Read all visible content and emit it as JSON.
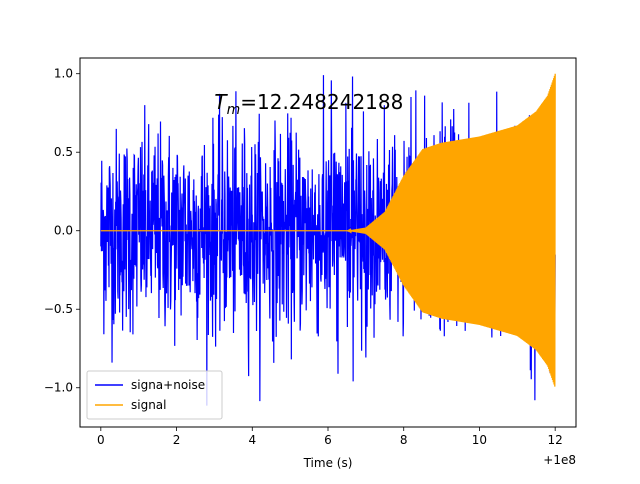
{
  "chart_data": {
    "type": "line",
    "title": "",
    "annotation": {
      "symbol": "T",
      "subscript": "m",
      "equals_value": "=12.248242188"
    },
    "xlabel": "Time (s)",
    "ylabel": "",
    "axis_offset_label": "+1e8",
    "xlim": [
      -0.55,
      12.55
    ],
    "ylim": [
      -1.25,
      1.1
    ],
    "x_ticks": [
      {
        "value": 0,
        "label": "0"
      },
      {
        "value": 2,
        "label": "2"
      },
      {
        "value": 4,
        "label": "4"
      },
      {
        "value": 6,
        "label": "6"
      },
      {
        "value": 8,
        "label": "8"
      },
      {
        "value": 10,
        "label": "10"
      },
      {
        "value": 12,
        "label": "12"
      }
    ],
    "y_ticks": [
      {
        "value": 1.0,
        "label": "1.0"
      },
      {
        "value": 0.5,
        "label": "0.5"
      },
      {
        "value": 0.0,
        "label": "0.0"
      },
      {
        "value": -0.5,
        "label": "−0.5"
      },
      {
        "value": -1.0,
        "label": "−1.0"
      }
    ],
    "grid": false,
    "legend_position": "lower-left",
    "series": [
      {
        "name": "signa+noise",
        "color": "#0000ff",
        "x_range": [
          0,
          12.0
        ],
        "y_envelope_approx": [
          -1.15,
          1.0
        ]
      },
      {
        "name": "signal",
        "color": "#ffa500",
        "envelope": {
          "x": [
            0,
            6.5,
            7.0,
            7.5,
            8.0,
            8.5,
            9.0,
            10.0,
            11.0,
            11.5,
            11.8,
            12.0
          ],
          "amplitude": [
            0.0,
            0.0,
            0.02,
            0.12,
            0.35,
            0.52,
            0.56,
            0.6,
            0.67,
            0.76,
            0.86,
            1.0
          ]
        }
      }
    ]
  }
}
